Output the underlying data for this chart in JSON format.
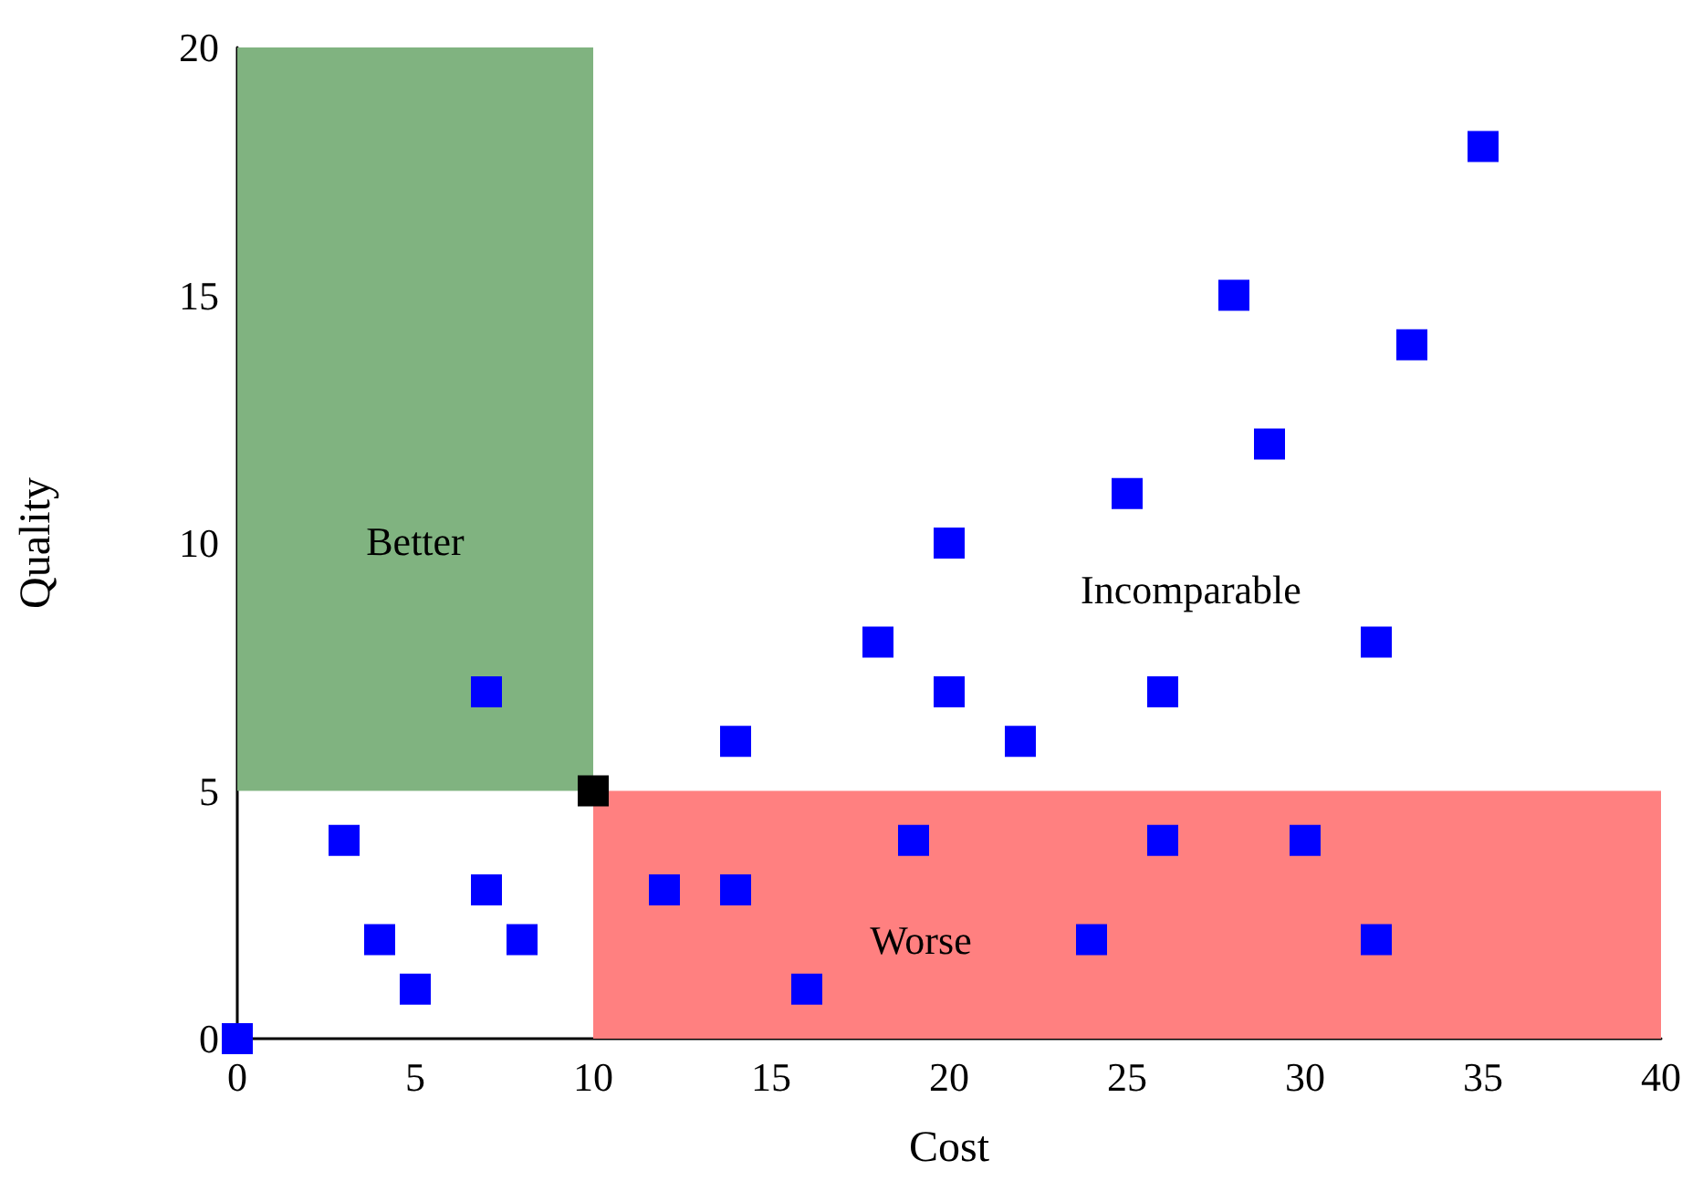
{
  "chart_data": {
    "type": "scatter",
    "xlabel": "Cost",
    "ylabel": "Quality",
    "series": [
      {
        "color": "#0000ff",
        "x": [
          0,
          3,
          4,
          5,
          7,
          7,
          8,
          12,
          14,
          14,
          16,
          18,
          19,
          20,
          20,
          22,
          24,
          25,
          26,
          26,
          28,
          29,
          30,
          32,
          32,
          33,
          35
        ],
        "values": [
          0,
          4,
          2,
          1,
          3,
          7,
          2,
          3,
          3,
          6,
          1,
          8,
          4,
          10,
          7,
          6,
          2,
          11,
          4,
          7,
          15,
          12,
          4,
          8,
          2,
          14,
          18
        ]
      },
      {
        "color": "#000000",
        "x": [
          10
        ],
        "values": [
          5
        ]
      }
    ],
    "bands": [
      {
        "axis": "x",
        "from": 0,
        "to": 10,
        "label": "Better",
        "color": "#80b380"
      },
      {
        "axis": "y",
        "from": 0,
        "to": 5,
        "label": "Worse",
        "color": "#ff8080"
      }
    ],
    "annotations": [
      "Incomparable"
    ],
    "xlim": [
      0,
      40
    ],
    "xticks": [
      0,
      5,
      10,
      15,
      20,
      25,
      30,
      35,
      40
    ],
    "ylim": [
      0,
      20
    ],
    "yticks": [
      0,
      5,
      10,
      15,
      20
    ],
    "marker": "square",
    "grid": false
  }
}
